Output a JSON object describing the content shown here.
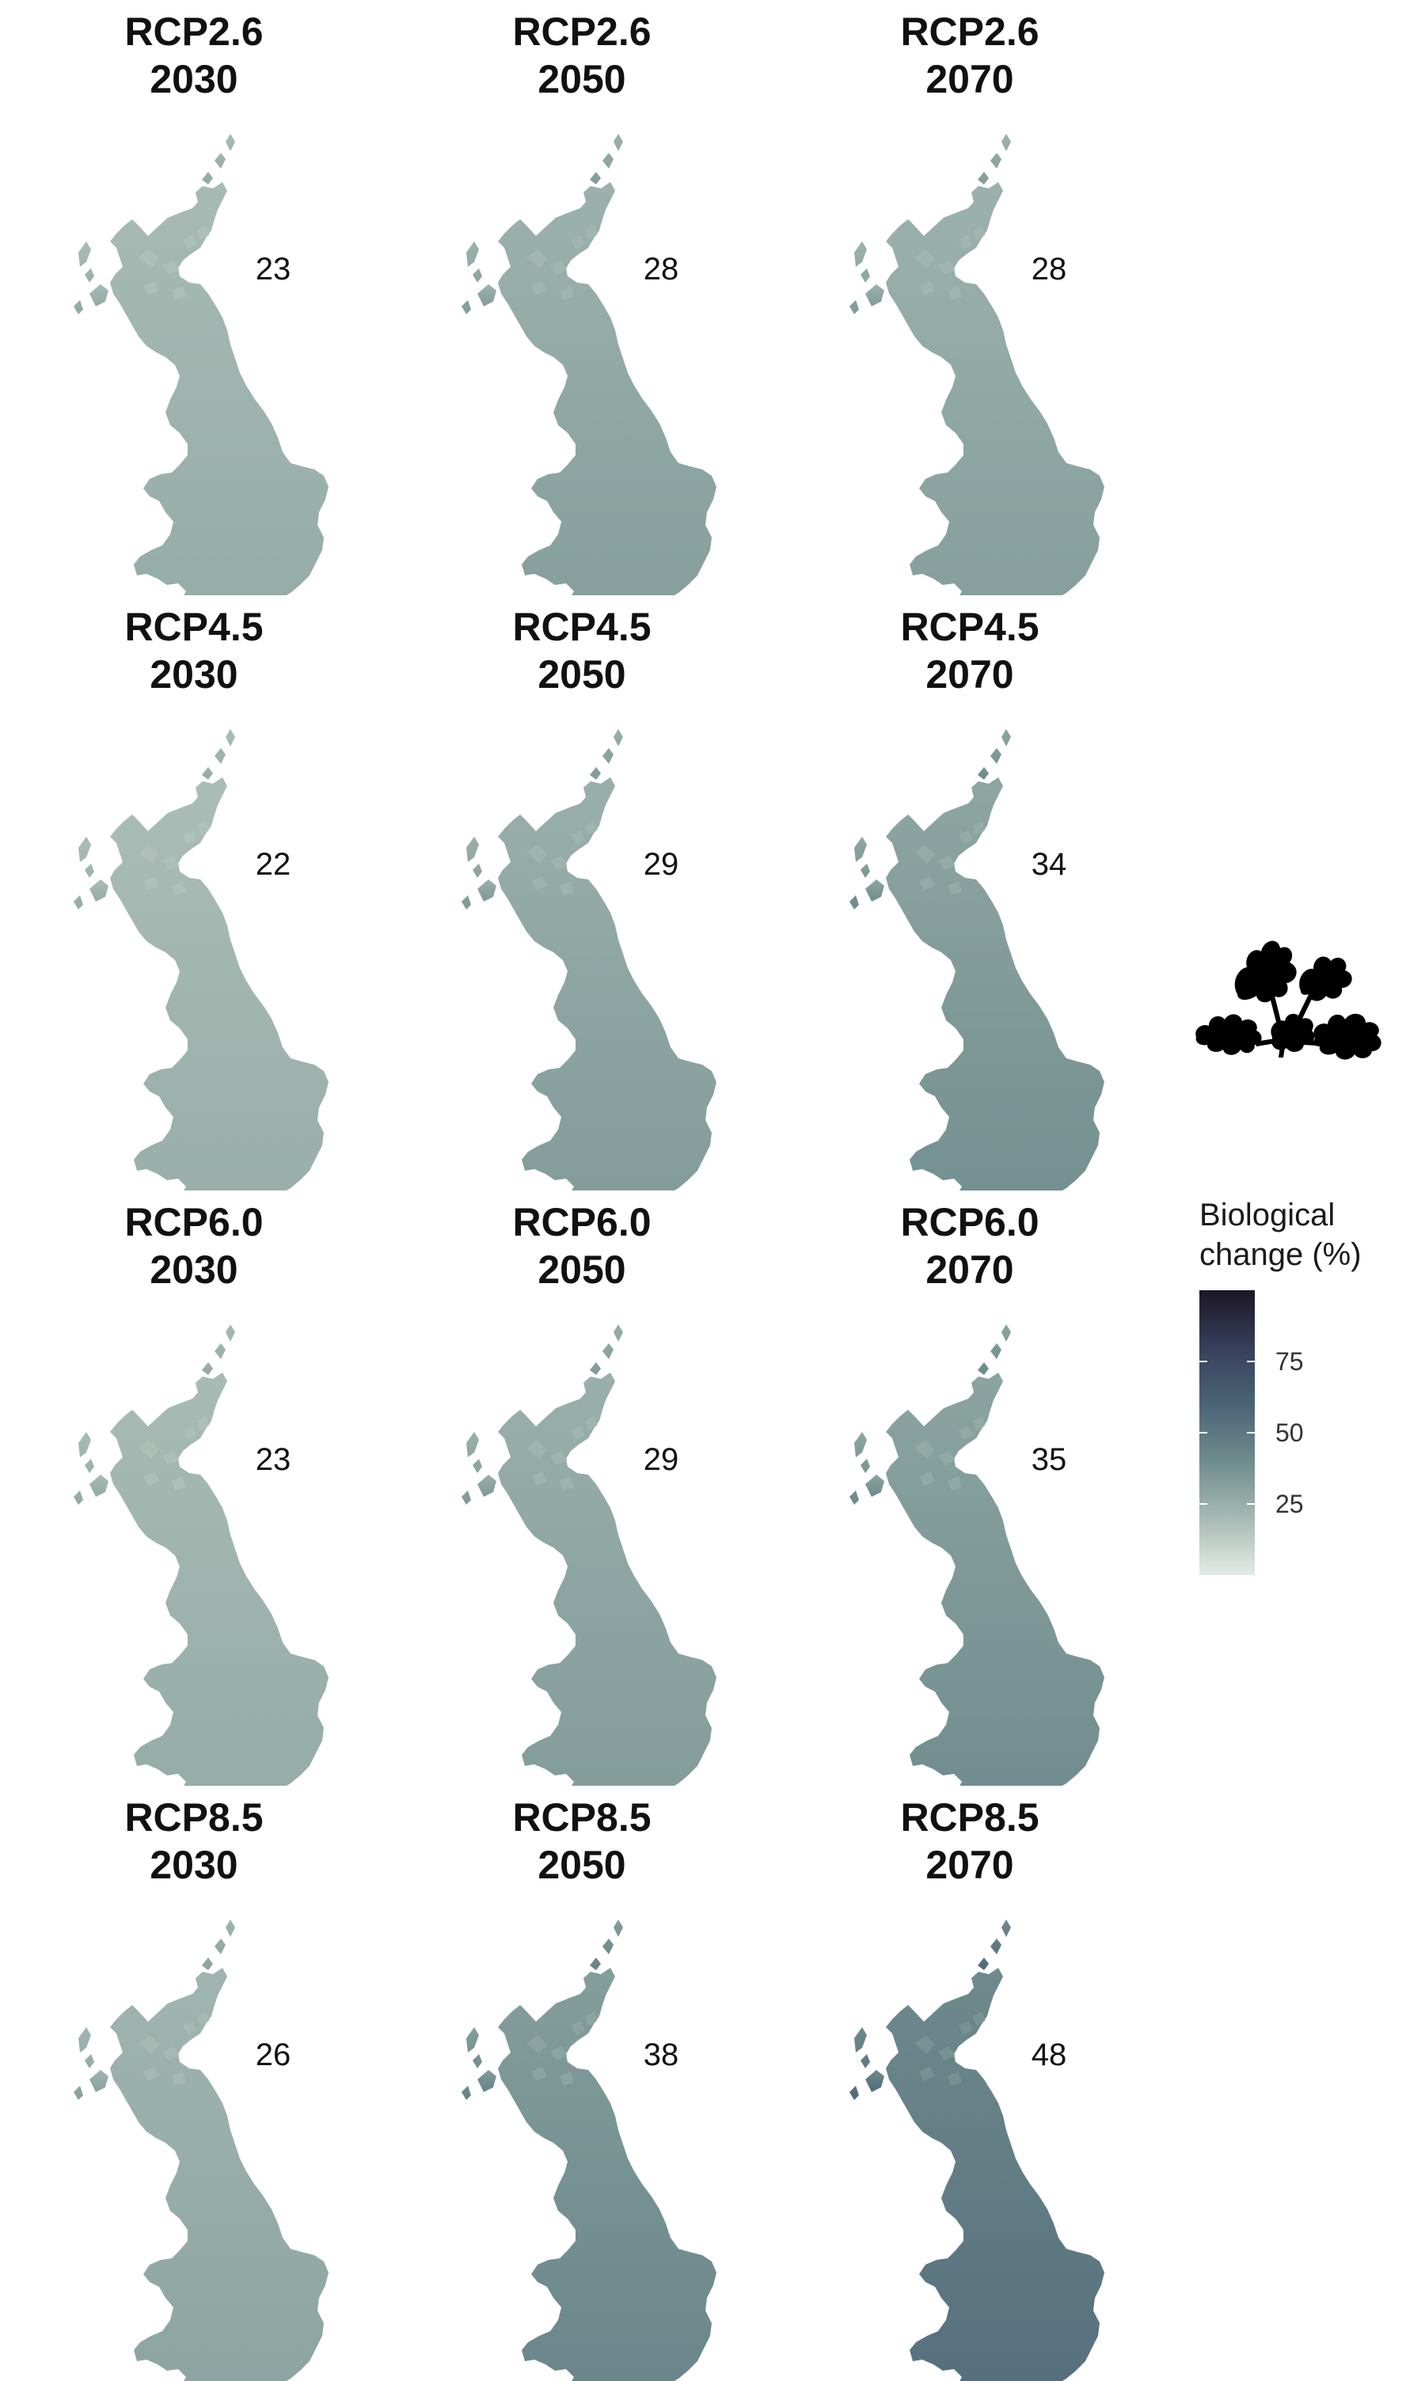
{
  "figure": {
    "panels": [
      {
        "scenario": "RCP2.6",
        "year": "2030",
        "value": "23",
        "intensity": 0.23
      },
      {
        "scenario": "RCP2.6",
        "year": "2050",
        "value": "28",
        "intensity": 0.28
      },
      {
        "scenario": "RCP2.6",
        "year": "2070",
        "value": "28",
        "intensity": 0.28
      },
      {
        "scenario": "RCP4.5",
        "year": "2030",
        "value": "22",
        "intensity": 0.22
      },
      {
        "scenario": "RCP4.5",
        "year": "2050",
        "value": "29",
        "intensity": 0.29
      },
      {
        "scenario": "RCP4.5",
        "year": "2070",
        "value": "34",
        "intensity": 0.34
      },
      {
        "scenario": "RCP6.0",
        "year": "2030",
        "value": "23",
        "intensity": 0.23
      },
      {
        "scenario": "RCP6.0",
        "year": "2050",
        "value": "29",
        "intensity": 0.29
      },
      {
        "scenario": "RCP6.0",
        "year": "2070",
        "value": "35",
        "intensity": 0.35
      },
      {
        "scenario": "RCP8.5",
        "year": "2030",
        "value": "26",
        "intensity": 0.26
      },
      {
        "scenario": "RCP8.5",
        "year": "2050",
        "value": "38",
        "intensity": 0.38
      },
      {
        "scenario": "RCP8.5",
        "year": "2070",
        "value": "48",
        "intensity": 0.48
      }
    ],
    "legend": {
      "title_line1": "Biological",
      "title_line2": "change (%)",
      "ticks": [
        "75",
        "50",
        "25"
      ],
      "tick_values": [
        75,
        50,
        25
      ],
      "range": [
        0,
        100
      ],
      "colors": [
        "#e4ebe6",
        "#a6bab3",
        "#6f8c8d",
        "#4b6377",
        "#363f5a",
        "#1c1626"
      ]
    },
    "icon": "oak-leaves-icon"
  }
}
